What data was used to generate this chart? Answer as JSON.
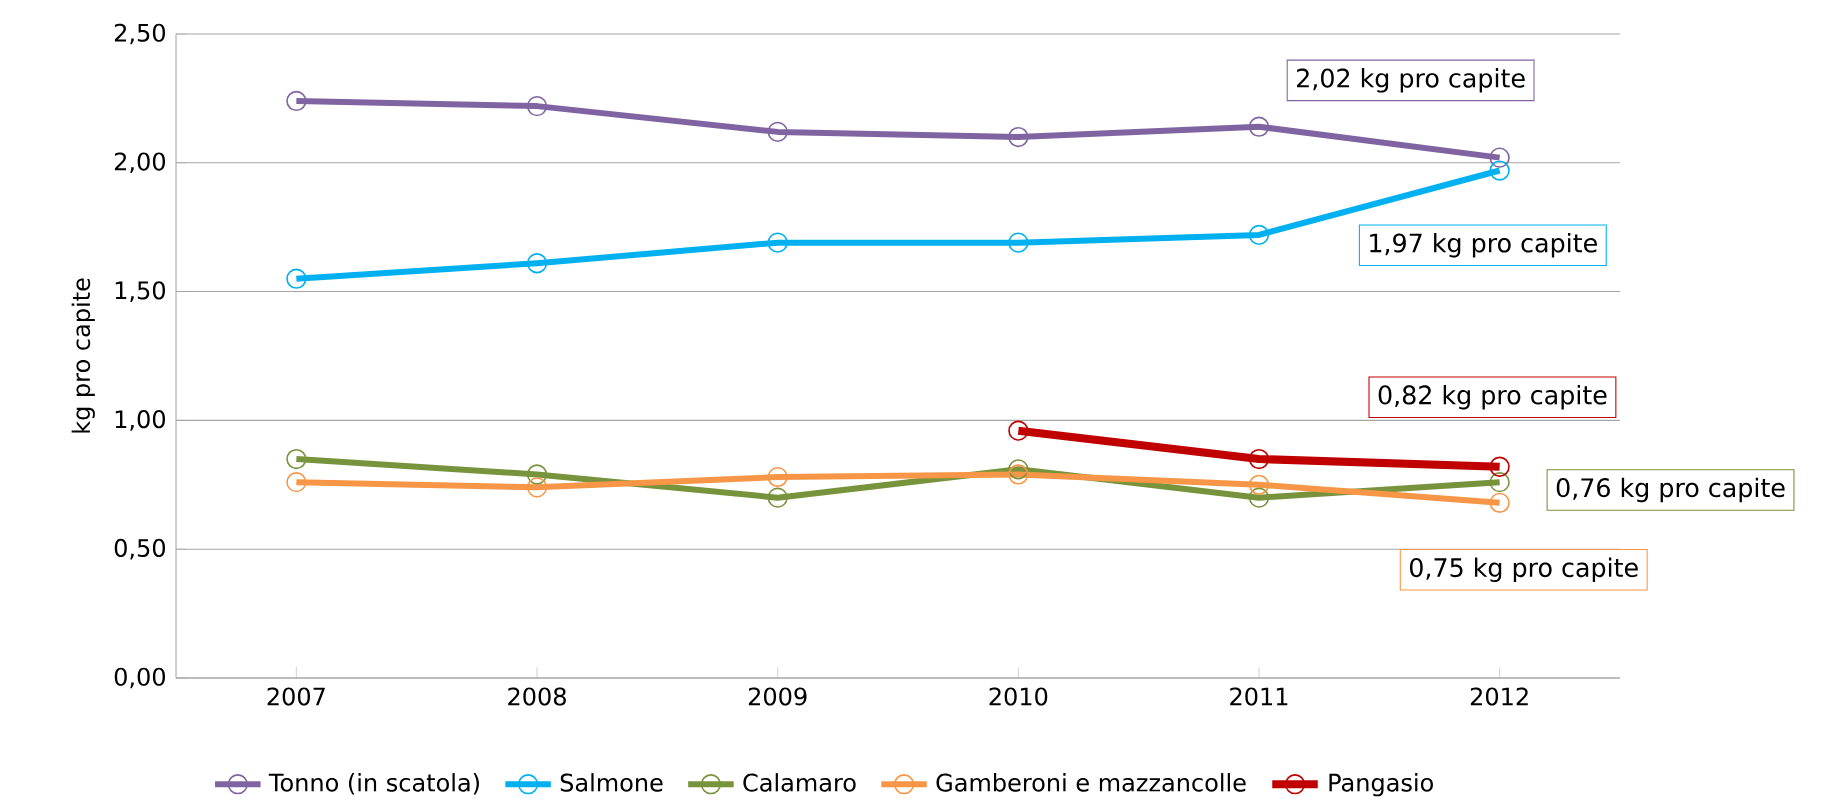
{
  "chart_data": {
    "type": "line",
    "ylabel": "kg pro capite",
    "categories": [
      "2007",
      "2008",
      "2009",
      "2010",
      "2011",
      "2012"
    ],
    "series": [
      {
        "name": "Tonno (in scatola)",
        "color": "#8064a2",
        "values": [
          2.24,
          2.22,
          2.12,
          2.1,
          2.14,
          2.02
        ]
      },
      {
        "name": "Salmone",
        "color": "#00b0f0",
        "values": [
          1.55,
          1.61,
          1.69,
          1.69,
          1.72,
          1.97
        ]
      },
      {
        "name": "Calamaro",
        "color": "#77933c",
        "values": [
          0.85,
          0.79,
          0.7,
          0.81,
          0.7,
          0.76
        ]
      },
      {
        "name": "Gamberoni e mazzancolle",
        "color": "#f79646",
        "values": [
          0.76,
          0.74,
          0.78,
          0.79,
          0.75,
          0.68
        ]
      },
      {
        "name": "Pangasio",
        "color": "#c00000",
        "values": [
          null,
          null,
          null,
          0.96,
          0.85,
          0.82
        ]
      }
    ],
    "ylim": [
      0,
      2.5
    ],
    "yticks": [
      {
        "value": 0,
        "label": "0,00"
      },
      {
        "value": 0.5,
        "label": "0,50"
      },
      {
        "value": 1,
        "label": "1,00"
      },
      {
        "value": 1.5,
        "label": "1,50"
      },
      {
        "value": 2,
        "label": "2,00"
      },
      {
        "value": 2.5,
        "label": "2,50"
      }
    ],
    "grid": "y",
    "legend": "bottom",
    "marker": "circle",
    "line_style": "solid",
    "annotations": [
      {
        "text": "2,02 kg pro capite",
        "x": "2012",
        "y": 2.02
      },
      {
        "text": "1,97 kg pro capite",
        "x": "2012",
        "y": 1.97
      },
      {
        "text": "0,82 kg pro capite",
        "x": "2012",
        "y": 0.82
      },
      {
        "text": "0,76 kg pro capite",
        "x": "2012",
        "y": 0.76
      },
      {
        "text": "0,75 kg pro capite",
        "x": "2012",
        "y": 0.68
      }
    ]
  }
}
